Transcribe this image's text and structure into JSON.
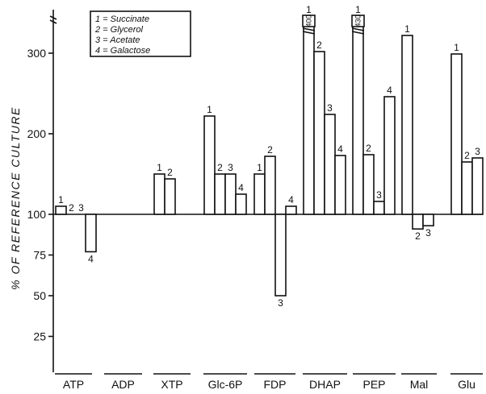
{
  "chart_data": {
    "type": "bar",
    "ylabel": "% OF REFERENCE CULTURE",
    "y_scale": "piecewise (25-unit steps below 100, 100-unit steps above 100; axis broken at top)",
    "y_ticks": [
      25,
      50,
      75,
      100,
      200,
      300
    ],
    "baseline": 100,
    "legend": {
      "placement": "top-left",
      "entries": [
        {
          "key": "1",
          "label": "Succinate"
        },
        {
          "key": "2",
          "label": "Glycerol"
        },
        {
          "key": "3",
          "label": "Acetate"
        },
        {
          "key": "4",
          "label": "Galactose"
        }
      ]
    },
    "groups": [
      {
        "name": "ATP",
        "bars": [
          {
            "series": "1",
            "value": 110
          },
          {
            "series": "2",
            "value": 100
          },
          {
            "series": "3",
            "value": 100
          },
          {
            "series": "4",
            "value": 77
          }
        ]
      },
      {
        "name": "ADP",
        "bars": []
      },
      {
        "name": "XTP",
        "bars": [
          {
            "series": "1",
            "value": 150
          },
          {
            "series": "2",
            "value": 144
          }
        ]
      },
      {
        "name": "Glc-6P",
        "bars": [
          {
            "series": "1",
            "value": 222
          },
          {
            "series": "2",
            "value": 150
          },
          {
            "series": "3",
            "value": 150
          },
          {
            "series": "4",
            "value": 125
          }
        ]
      },
      {
        "name": "FDP",
        "bars": [
          {
            "series": "1",
            "value": 150
          },
          {
            "series": "2",
            "value": 172
          },
          {
            "series": "3",
            "value": 50
          },
          {
            "series": "4",
            "value": 110
          }
        ]
      },
      {
        "name": "DHAP",
        "bars": [
          {
            "series": "1",
            "value": 340,
            "off_scale_label": "400"
          },
          {
            "series": "2",
            "value": 302
          },
          {
            "series": "3",
            "value": 224
          },
          {
            "series": "4",
            "value": 173
          }
        ]
      },
      {
        "name": "PEP",
        "bars": [
          {
            "series": "1",
            "value": 340,
            "off_scale_label": "430"
          },
          {
            "series": "2",
            "value": 174
          },
          {
            "series": "3",
            "value": 116
          },
          {
            "series": "4",
            "value": 246
          }
        ]
      },
      {
        "name": "Mal",
        "bars": [
          {
            "series": "1",
            "value": 322
          },
          {
            "series": "2",
            "value": 91
          },
          {
            "series": "3",
            "value": 93
          }
        ]
      },
      {
        "name": "Glu",
        "bars": [
          {
            "series": "1",
            "value": 299
          },
          {
            "series": "2",
            "value": 165
          },
          {
            "series": "3",
            "value": 170
          }
        ]
      }
    ]
  }
}
